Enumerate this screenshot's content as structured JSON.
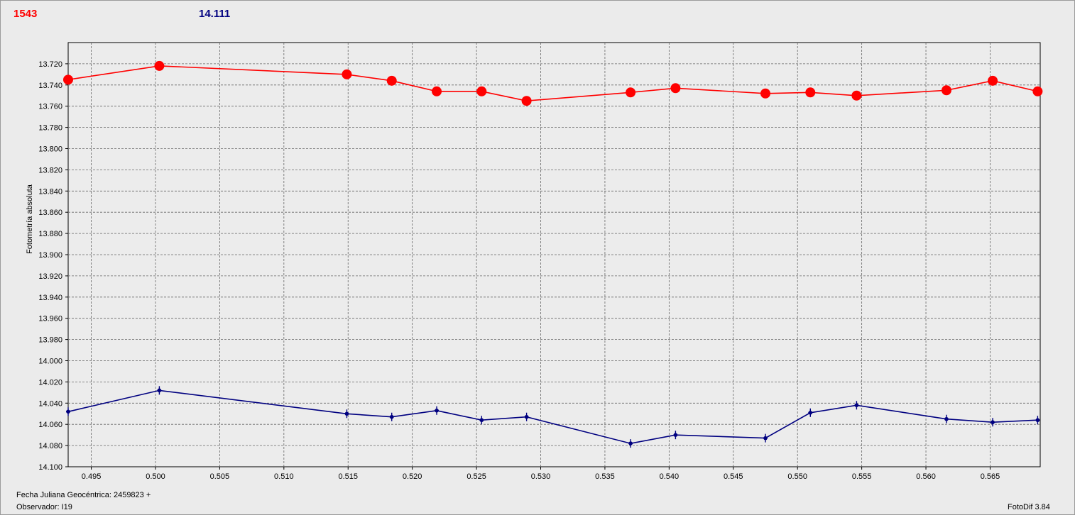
{
  "header": {
    "left_value": "1543",
    "left_color": "#ff0000",
    "right_value": "14.111",
    "right_color": "#000080"
  },
  "footer": {
    "date_label": "Fecha Juliana Geocéntrica: 2459823 +",
    "observer_label": "Observador: I19",
    "version": "FotoDif 3.84"
  },
  "chart_data": {
    "type": "line",
    "title": "",
    "xlabel": "",
    "ylabel": "Fotometría absoluta",
    "xlim": [
      0.4932,
      0.5689
    ],
    "ylim": [
      13.7,
      14.1
    ],
    "y_inverted": true,
    "grid": true,
    "x_ticks": [
      "0.495",
      "0.500",
      "0.505",
      "0.510",
      "0.515",
      "0.520",
      "0.525",
      "0.530",
      "0.535",
      "0.540",
      "0.545",
      "0.550",
      "0.555",
      "0.560",
      "0.565"
    ],
    "x_tick_values": [
      0.495,
      0.5,
      0.505,
      0.51,
      0.515,
      0.52,
      0.525,
      0.53,
      0.535,
      0.54,
      0.545,
      0.55,
      0.555,
      0.56,
      0.565
    ],
    "y_ticks": [
      "13.720",
      "13.740",
      "13.760",
      "13.780",
      "13.800",
      "13.820",
      "13.840",
      "13.860",
      "13.880",
      "13.900",
      "13.920",
      "13.940",
      "13.960",
      "13.980",
      "14.000",
      "14.020",
      "14.040",
      "14.060",
      "14.080",
      "14.100"
    ],
    "y_tick_values": [
      13.72,
      13.74,
      13.76,
      13.78,
      13.8,
      13.82,
      13.84,
      13.86,
      13.88,
      13.9,
      13.92,
      13.94,
      13.96,
      13.98,
      14.0,
      14.02,
      14.04,
      14.06,
      14.08,
      14.1
    ],
    "x": [
      0.4932,
      0.5003,
      0.5149,
      0.5184,
      0.5219,
      0.5254,
      0.5289,
      0.537,
      0.5405,
      0.5475,
      0.551,
      0.5546,
      0.5616,
      0.5652,
      0.5687
    ],
    "series": [
      {
        "color": "#ff0000",
        "marker": "circle",
        "values": [
          13.735,
          13.722,
          13.73,
          13.736,
          13.746,
          13.746,
          13.755,
          13.747,
          13.743,
          13.748,
          13.747,
          13.75,
          13.745,
          13.736,
          13.746
        ]
      },
      {
        "color": "#000080",
        "marker": "cross",
        "values": [
          14.048,
          14.028,
          14.05,
          14.053,
          14.047,
          14.056,
          14.053,
          14.078,
          14.07,
          14.073,
          14.049,
          14.042,
          14.055,
          14.058,
          14.056
        ]
      }
    ]
  }
}
